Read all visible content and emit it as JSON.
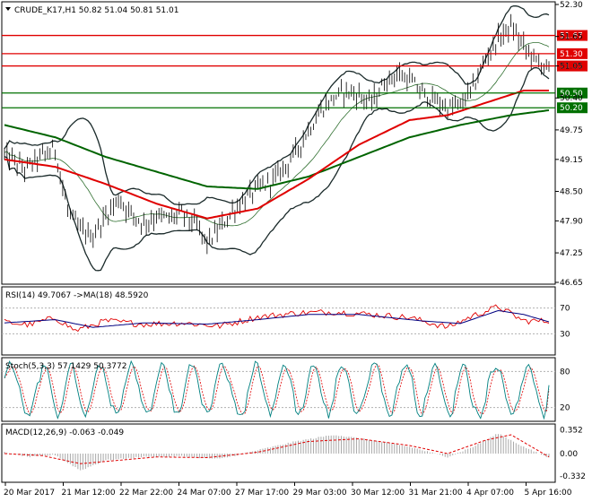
{
  "chart_data": [
    {
      "type": "candlestick",
      "panel": "price",
      "title": "CRUDE_K17,H1  50.82 51.04 50.81 51.01",
      "symbol": "CRUDE_K17,H1",
      "ohlc_last": {
        "open": 50.82,
        "high": 51.04,
        "low": 50.81,
        "close": 51.01
      },
      "ylim": [
        46.65,
        52.3
      ],
      "yticks": [
        "52.30",
        "51.65",
        "51.05",
        "50.40",
        "49.75",
        "49.15",
        "48.50",
        "47.90",
        "47.25",
        "46.65"
      ],
      "horizontal_levels": [
        {
          "value": 51.67,
          "label": "51.67",
          "color": "#e00000"
        },
        {
          "value": 51.3,
          "label": "51.30",
          "color": "#e00000"
        },
        {
          "value": 51.05,
          "label": "51.05",
          "color": "#e00000"
        },
        {
          "value": 50.5,
          "label": "50.50",
          "color": "#007000"
        },
        {
          "value": 50.2,
          "label": "50.20",
          "color": "#007000"
        }
      ],
      "overlays": [
        "Bollinger Bands",
        "moving average red",
        "moving average green"
      ],
      "x_labels": [
        "20 Mar 2017",
        "21 Mar 12:00",
        "22 Mar 22:00",
        "24 Mar 07:00",
        "27 Mar 17:00",
        "29 Mar 03:00",
        "30 Mar 12:00",
        "31 Mar 21:00",
        "4 Apr 07:00",
        "5 Apr 16:00"
      ],
      "price_path": [
        [
          0,
          49.25
        ],
        [
          8,
          48.95
        ],
        [
          14,
          49.2
        ],
        [
          20,
          49.35
        ],
        [
          25,
          48.1
        ],
        [
          30,
          47.7
        ],
        [
          35,
          47.6
        ],
        [
          40,
          48.0
        ],
        [
          45,
          48.35
        ],
        [
          50,
          48.05
        ],
        [
          55,
          47.85
        ],
        [
          60,
          48.0
        ],
        [
          65,
          47.95
        ],
        [
          70,
          48.05
        ],
        [
          75,
          47.85
        ],
        [
          80,
          47.45
        ],
        [
          85,
          47.75
        ],
        [
          90,
          48.1
        ],
        [
          95,
          48.35
        ],
        [
          100,
          48.55
        ],
        [
          105,
          48.7
        ],
        [
          110,
          48.95
        ],
        [
          115,
          49.3
        ],
        [
          120,
          49.75
        ],
        [
          125,
          50.15
        ],
        [
          130,
          50.4
        ],
        [
          135,
          50.55
        ],
        [
          140,
          50.45
        ],
        [
          145,
          50.3
        ],
        [
          150,
          50.7
        ],
        [
          155,
          50.9
        ],
        [
          160,
          50.75
        ],
        [
          165,
          50.5
        ],
        [
          170,
          50.35
        ],
        [
          175,
          50.2
        ],
        [
          180,
          50.25
        ],
        [
          185,
          50.6
        ],
        [
          190,
          51.2
        ],
        [
          195,
          51.6
        ],
        [
          200,
          51.85
        ],
        [
          205,
          51.45
        ],
        [
          210,
          51.15
        ],
        [
          215,
          51.0
        ]
      ],
      "ma_red": [
        [
          0,
          49.15
        ],
        [
          20,
          49.0
        ],
        [
          40,
          48.65
        ],
        [
          60,
          48.25
        ],
        [
          80,
          47.95
        ],
        [
          100,
          48.15
        ],
        [
          120,
          48.75
        ],
        [
          140,
          49.45
        ],
        [
          160,
          49.95
        ],
        [
          175,
          50.05
        ],
        [
          190,
          50.3
        ],
        [
          205,
          50.55
        ],
        [
          215,
          50.55
        ]
      ],
      "ma_green": [
        [
          0,
          49.85
        ],
        [
          20,
          49.6
        ],
        [
          40,
          49.2
        ],
        [
          60,
          48.9
        ],
        [
          80,
          48.6
        ],
        [
          100,
          48.55
        ],
        [
          120,
          48.8
        ],
        [
          140,
          49.2
        ],
        [
          160,
          49.6
        ],
        [
          180,
          49.85
        ],
        [
          200,
          50.05
        ],
        [
          215,
          50.15
        ]
      ]
    },
    {
      "type": "line",
      "panel": "rsi",
      "title": "RSI(14) 49.7067  ->MA(18) 48.5920",
      "ylim": [
        0,
        100
      ],
      "yticks": [
        "70",
        "30"
      ],
      "series": [
        {
          "name": "RSI(14)",
          "color": "#e00000",
          "values": [
            [
              0,
              48
            ],
            [
              10,
              44
            ],
            [
              20,
              55
            ],
            [
              28,
              35
            ],
            [
              40,
              50
            ],
            [
              55,
              45
            ],
            [
              70,
              47
            ],
            [
              85,
              42
            ],
            [
              100,
              56
            ],
            [
              115,
              62
            ],
            [
              130,
              64
            ],
            [
              145,
              60
            ],
            [
              160,
              55
            ],
            [
              175,
              40
            ],
            [
              185,
              58
            ],
            [
              195,
              72
            ],
            [
              205,
              50
            ],
            [
              215,
              49.7
            ]
          ]
        },
        {
          "name": "MA(18)",
          "color": "#000080",
          "values": [
            [
              0,
              47
            ],
            [
              20,
              52
            ],
            [
              35,
              40
            ],
            [
              55,
              47
            ],
            [
              80,
              45
            ],
            [
              100,
              52
            ],
            [
              120,
              60
            ],
            [
              140,
              60
            ],
            [
              165,
              50
            ],
            [
              180,
              46
            ],
            [
              195,
              66
            ],
            [
              205,
              60
            ],
            [
              215,
              48.6
            ]
          ]
        }
      ]
    },
    {
      "type": "line",
      "panel": "stochastic",
      "title": "Stoch(5,3,3) 57.1429 50.3772",
      "ylim": [
        0,
        100
      ],
      "yticks": [
        "80",
        "20"
      ],
      "series": [
        {
          "name": "%K",
          "color": "#008080"
        },
        {
          "name": "%D",
          "color": "#e00000"
        }
      ],
      "last": {
        "k": 57.1429,
        "d": 50.3772
      }
    },
    {
      "type": "bar",
      "panel": "macd",
      "title": "MACD(12,26,9) -0.063 -0.049",
      "ylim": [
        -0.4,
        0.4
      ],
      "yticks": [
        "0.352",
        "0.00",
        "-0.332"
      ],
      "histogram": [
        [
          0,
          0.02
        ],
        [
          10,
          -0.05
        ],
        [
          20,
          -0.02
        ],
        [
          30,
          -0.25
        ],
        [
          40,
          -0.1
        ],
        [
          55,
          -0.05
        ],
        [
          70,
          -0.04
        ],
        [
          85,
          -0.08
        ],
        [
          100,
          0.05
        ],
        [
          115,
          0.18
        ],
        [
          130,
          0.28
        ],
        [
          145,
          0.2
        ],
        [
          160,
          0.1
        ],
        [
          175,
          -0.05
        ],
        [
          185,
          0.1
        ],
        [
          195,
          0.3
        ],
        [
          205,
          0.1
        ],
        [
          215,
          -0.063
        ]
      ],
      "signal": [
        [
          0,
          0.0
        ],
        [
          15,
          -0.03
        ],
        [
          30,
          -0.15
        ],
        [
          45,
          -0.1
        ],
        [
          60,
          -0.05
        ],
        [
          80,
          -0.06
        ],
        [
          100,
          0.02
        ],
        [
          120,
          0.18
        ],
        [
          140,
          0.22
        ],
        [
          160,
          0.12
        ],
        [
          175,
          0.0
        ],
        [
          190,
          0.2
        ],
        [
          200,
          0.28
        ],
        [
          215,
          -0.049
        ]
      ]
    }
  ]
}
